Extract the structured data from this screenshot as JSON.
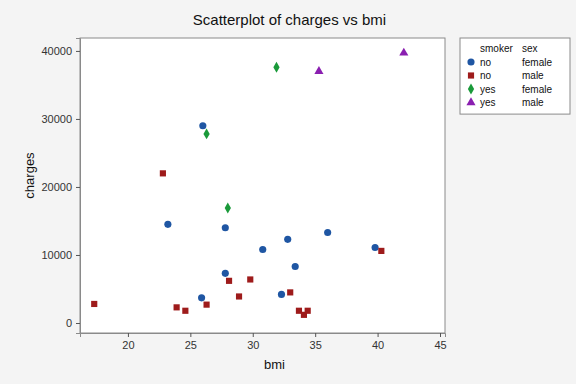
{
  "chart_data": {
    "type": "scatter",
    "title": "Scatterplot of charges vs bmi",
    "x_label": "bmi",
    "y_label": "charges",
    "legend_columns": [
      "smoker",
      "sex"
    ],
    "legend": "outside-right",
    "xlim": [
      16.16,
      45.4
    ],
    "ylim": [
      -1470,
      41900
    ],
    "xticks": [
      20,
      25,
      30,
      35,
      40,
      45
    ],
    "yticks": [
      0,
      10000,
      20000,
      30000,
      40000
    ],
    "series": [
      {
        "name": [
          "no",
          "female"
        ],
        "color": "#1f56a3",
        "marker": "circle",
        "x": [
          26.0,
          23.2,
          27.8,
          30.8,
          32.8,
          33.4,
          36.0,
          39.8,
          27.8,
          25.9,
          32.3
        ],
        "values": [
          29000,
          14500,
          14000,
          10800,
          12300,
          8300,
          13300,
          11100,
          7300,
          3700,
          4200
        ]
      },
      {
        "name": [
          "no",
          "male"
        ],
        "color": "#9e1b1b",
        "marker": "square",
        "x": [
          17.3,
          22.8,
          23.9,
          24.6,
          26.3,
          28.1,
          28.9,
          29.8,
          33.0,
          33.7,
          34.1,
          34.4,
          40.3
        ],
        "values": [
          2800,
          22000,
          2300,
          1800,
          2700,
          6200,
          3900,
          6400,
          4500,
          1800,
          1200,
          1800,
          10600
        ]
      },
      {
        "name": [
          "yes",
          "female"
        ],
        "color": "#1a9a3a",
        "marker": "diamond",
        "x": [
          31.9,
          26.3,
          28.0
        ],
        "values": [
          37600,
          27800,
          16900
        ]
      },
      {
        "name": [
          "yes",
          "male"
        ],
        "color": "#8a1fb0",
        "marker": "triangle",
        "x": [
          35.3,
          42.1
        ],
        "values": [
          37000,
          39700
        ]
      }
    ]
  }
}
